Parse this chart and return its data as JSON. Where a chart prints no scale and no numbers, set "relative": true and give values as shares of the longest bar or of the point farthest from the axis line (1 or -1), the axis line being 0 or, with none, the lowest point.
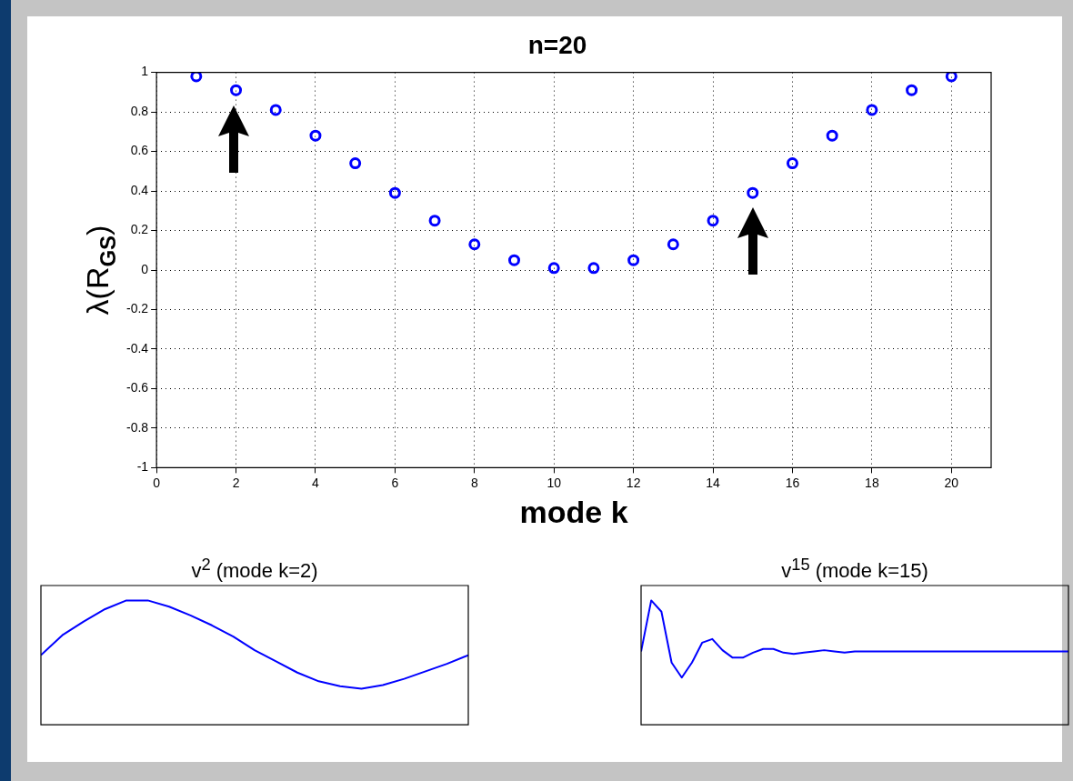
{
  "chart_data": [
    {
      "type": "scatter",
      "title": "n=20",
      "xlabel": "mode k",
      "ylabel": "λ(R$_{GS}$)",
      "x": [
        1,
        2,
        3,
        4,
        5,
        6,
        7,
        8,
        9,
        10,
        11,
        12,
        13,
        14,
        15,
        16,
        17,
        18,
        19,
        20
      ],
      "series": [
        {
          "color": "#0000ff",
          "values": [
            0.98,
            0.91,
            0.81,
            0.68,
            0.54,
            0.39,
            0.25,
            0.13,
            0.05,
            0.01,
            0.01,
            0.05,
            0.13,
            0.25,
            0.39,
            0.54,
            0.68,
            0.81,
            0.91,
            0.98
          ]
        }
      ],
      "xlim": [
        0,
        21
      ],
      "xticks": [
        0,
        2,
        4,
        6,
        8,
        10,
        12,
        14,
        16,
        18,
        20
      ],
      "ylim": [
        -1,
        1
      ],
      "yticks": [
        -1,
        -0.8,
        -0.6,
        -0.4,
        -0.2,
        0,
        0.2,
        0.4,
        0.6,
        0.8,
        1
      ],
      "grid": true,
      "marker": "circle"
    },
    {
      "type": "line",
      "title": "v$^{2}$ (mode k=2)",
      "relative": true,
      "categories": [
        null,
        null,
        null,
        null,
        null,
        null,
        null,
        null,
        null,
        null,
        null,
        null,
        null,
        null,
        null,
        null,
        null,
        null,
        null,
        null,
        null
      ],
      "series": [
        {
          "color": "#0000ff",
          "values": [
            0.56,
            0.72,
            0.83,
            0.93,
            1.0,
            1.0,
            0.95,
            0.88,
            0.8,
            0.71,
            0.6,
            0.51,
            0.42,
            0.35,
            0.31,
            0.29,
            0.32,
            0.37,
            0.43,
            0.49,
            0.56
          ]
        }
      ],
      "marker": "none"
    },
    {
      "type": "line",
      "title": "v$^{15}$ (mode k=15)",
      "relative": true,
      "categories": [
        null,
        null,
        null,
        null,
        null,
        null,
        null,
        null,
        null,
        null,
        null,
        null,
        null,
        null,
        null,
        null,
        null,
        null,
        null,
        null,
        null,
        null,
        null,
        null,
        null,
        null,
        null,
        null,
        null,
        null,
        null,
        null,
        null,
        null,
        null,
        null,
        null,
        null,
        null,
        null,
        null,
        null,
        null
      ],
      "series": [
        {
          "color": "#0000ff",
          "values": [
            0.59,
            1.0,
            0.91,
            0.5,
            0.38,
            0.5,
            0.66,
            0.69,
            0.6,
            0.54,
            0.54,
            0.58,
            0.61,
            0.61,
            0.58,
            0.57,
            0.58,
            0.59,
            0.6,
            0.59,
            0.58,
            0.59,
            0.59,
            0.59,
            0.59,
            0.59,
            0.59,
            0.59,
            0.59,
            0.59,
            0.59,
            0.59,
            0.59,
            0.59,
            0.59,
            0.59,
            0.59,
            0.59,
            0.59,
            0.59,
            0.59,
            0.59,
            0.59
          ]
        }
      ],
      "marker": "none"
    }
  ]
}
